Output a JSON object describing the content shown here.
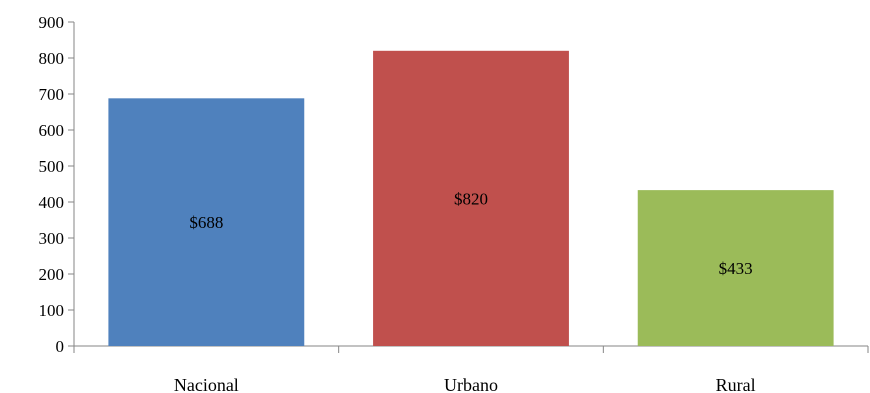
{
  "chart_data": {
    "type": "bar",
    "categories": [
      "Nacional",
      "Urbano",
      "Rural"
    ],
    "values": [
      688,
      820,
      433
    ],
    "data_labels": [
      "$688",
      "$820",
      "$433"
    ],
    "colors": [
      "#4f81bd",
      "#c0504d",
      "#9bbb59"
    ],
    "ylim": [
      0,
      900
    ],
    "yticks": [
      0,
      100,
      200,
      300,
      400,
      500,
      600,
      700,
      800,
      900
    ],
    "title": "",
    "xlabel": "",
    "ylabel": "",
    "grid": false,
    "legend": "none"
  }
}
